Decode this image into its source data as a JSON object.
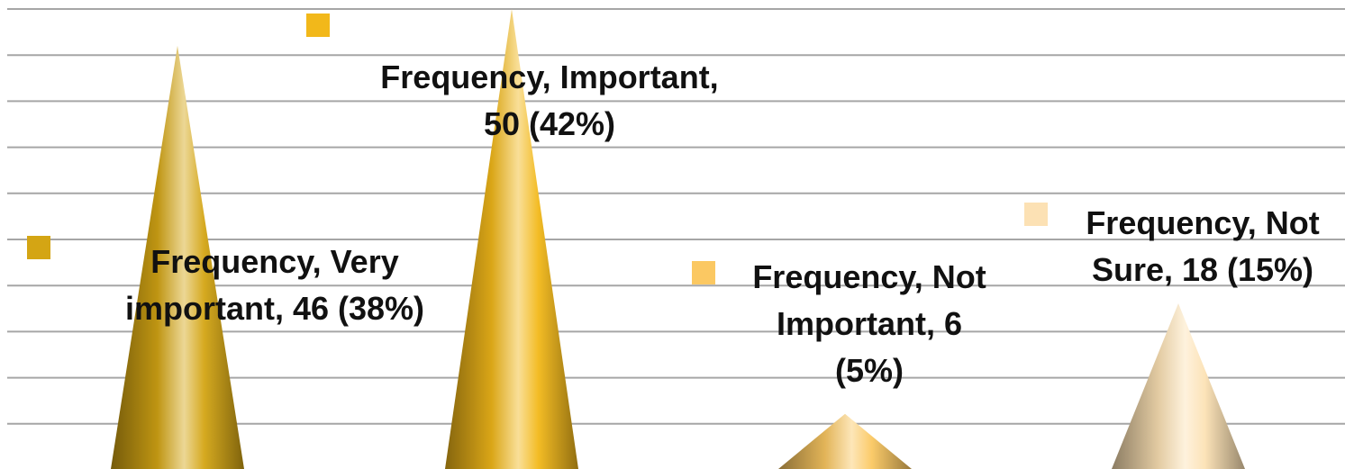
{
  "chart_data": {
    "type": "bar",
    "style": "3d-cone",
    "series_name": "Frequency",
    "categories": [
      "Very important",
      "Important",
      "Not Important",
      "Not Sure"
    ],
    "values": [
      46,
      50,
      6,
      18
    ],
    "percents": [
      "38%",
      "42%",
      "5%",
      "15%"
    ],
    "colors": [
      "#d4a514",
      "#f2b81a",
      "#fbc862",
      "#fce1b4"
    ],
    "data_labels": [
      "Frequency, Very important, 46 (38%)",
      "Frequency, Important, 50 (42%)",
      "Frequency, Not Important, 6 (5%)",
      "Frequency, Not Sure, 18 (15%)"
    ],
    "ylim": [
      0,
      50
    ],
    "gridlines": true,
    "axes_visible": false
  }
}
